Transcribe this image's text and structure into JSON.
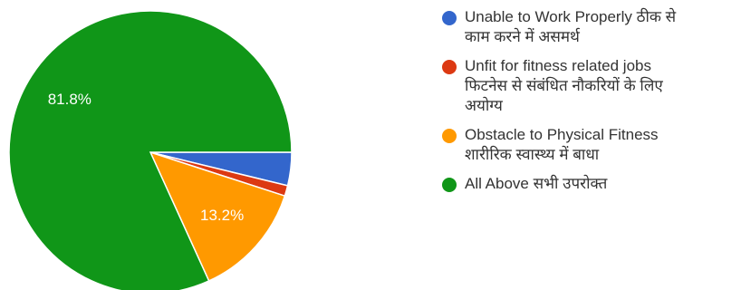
{
  "chart_data": {
    "type": "pie",
    "start_angle_deg": 0,
    "direction": "clockwise",
    "slices": [
      {
        "label": "Unable to Work Properly ठीक से काम करने में असमर्थ",
        "lines": [
          "Unable to Work Properly ठीक से",
          "काम करने में असमर्थ"
        ],
        "value": 3.8,
        "color": "#3366cc",
        "shown_label": ""
      },
      {
        "label": "Unfit for fitness related jobs फिटनेस से संबंधित नौकरियों के लिए अयोग्य",
        "lines": [
          "Unfit for fitness related jobs",
          "फिटनेस से संबंधित नौकरियों के लिए",
          "अयोग्य"
        ],
        "value": 1.2,
        "color": "#dc3912",
        "shown_label": ""
      },
      {
        "label": "Obstacle to Physical Fitness शारीरिक स्वास्थ्य में बाधा",
        "lines": [
          "Obstacle to Physical Fitness",
          "शारीरिक स्वास्थ्य में बाधा"
        ],
        "value": 13.2,
        "color": "#ff9900",
        "shown_label": "13.2%"
      },
      {
        "label": "All Above सभी उपरोक्त",
        "lines": [
          "All Above सभी उपरोक्त"
        ],
        "value": 81.8,
        "color": "#109618",
        "shown_label": "81.8%"
      }
    ],
    "legend_position": "right"
  }
}
